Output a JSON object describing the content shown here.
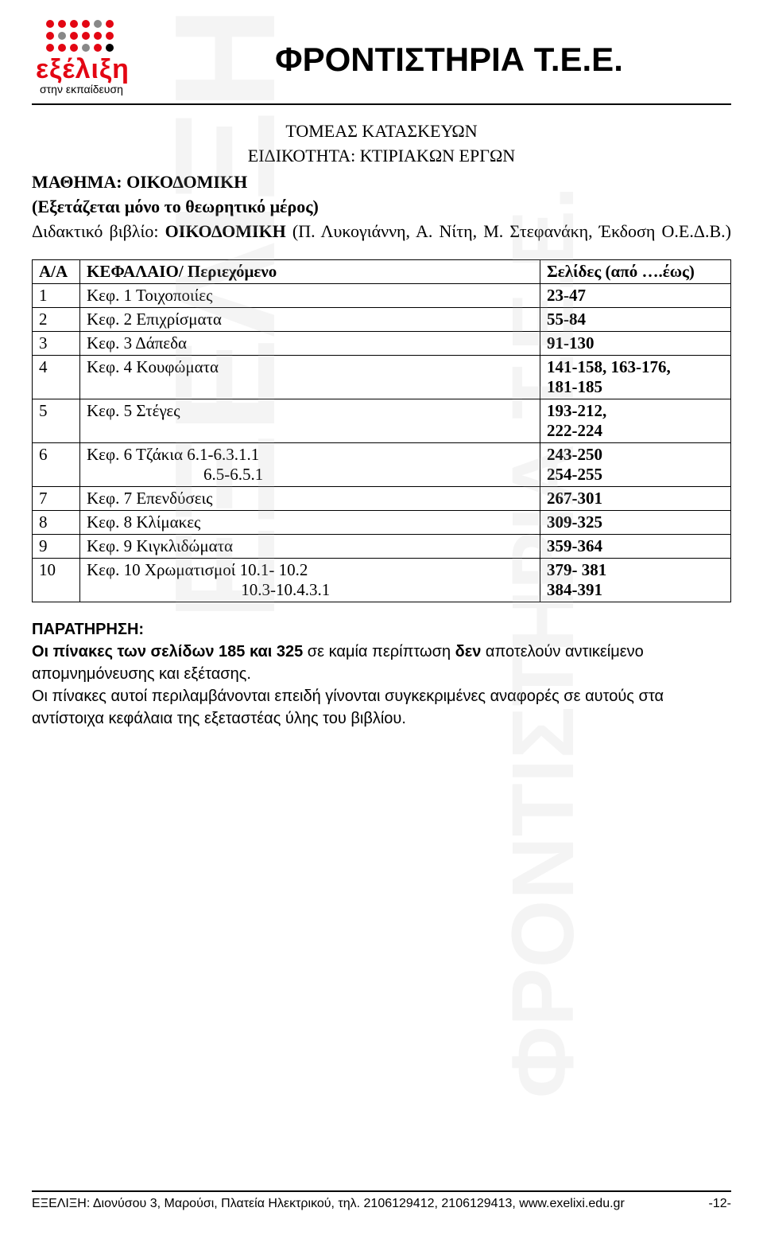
{
  "logo": {
    "main": "εξέλιξη",
    "sub": "στην εκπαίδευση"
  },
  "title": "ΦΡΟΝΤΙΣΤΗΡΙΑ Τ.Ε.Ε.",
  "subtitle1": "ΤΟΜΕΑΣ  ΚΑΤΑΣΚΕΥΩΝ",
  "subtitle2": "ΕΙΔΙΚΟΤΗΤΑ: ΚΤΙΡΙΑΚΩΝ ΕΡΓΩΝ",
  "meta": {
    "line1_bold": "ΜΑΘΗΜΑ: ΟΙΚΟΔΟΜΙΚΗ",
    "line2_bold": "(Εξετάζεται μόνο το θεωρητικό μέρος)",
    "line3_prefix": "Διδακτικό βιβλίο: ",
    "line3_bold": "ΟΙΚΟΔΟΜΙΚΗ",
    "line3_suffix": " (Π. Λυκογιάννη, Α. Νίτη, Μ. Στεφανάκη, Έκδοση Ο.Ε.Δ.Β.)"
  },
  "table": {
    "headers": {
      "aa": "Α/Α",
      "chapter": "ΚΕΦΑΛΑΙΟ/ Περιεχόμενο",
      "pages": "Σελίδες (από ….έως)"
    },
    "rows": [
      {
        "aa": "1",
        "chapter": "Κεφ. 1 Τοιχοποιίες",
        "pages": "23-47"
      },
      {
        "aa": "2",
        "chapter": "Κεφ. 2 Επιχρίσματα",
        "pages": "55-84"
      },
      {
        "aa": "3",
        "chapter": "Κεφ. 3 Δάπεδα",
        "pages": "91-130"
      },
      {
        "aa": "4",
        "chapter": "Κεφ. 4 Κουφώματα",
        "pages": "141-158, 163-176,\n181-185"
      },
      {
        "aa": "5",
        "chapter": "Κεφ. 5 Στέγες",
        "pages": "193-212,\n222-224"
      },
      {
        "aa": "6",
        "chapter": "Κεφ. 6 Τζάκια 6.1-6.3.1.1\n                            6.5-6.5.1",
        "pages": "243-250\n254-255"
      },
      {
        "aa": "7",
        "chapter": "Κεφ. 7 Επενδύσεις",
        "pages": "267-301"
      },
      {
        "aa": "8",
        "chapter": "Κεφ. 8 Κλίμακες",
        "pages": "309-325"
      },
      {
        "aa": "9",
        "chapter": "Κεφ. 9 Κιγκλιδώματα",
        "pages": "359-364"
      },
      {
        "aa": "10",
        "chapter": "Κεφ. 10 Χρωματισμοί 10.1- 10.2\n                                     10.3-10.4.3.1",
        "pages": "379- 381\n384-391"
      }
    ]
  },
  "note": {
    "heading": "ΠΑΡΑΤΗΡΗΣΗ:",
    "p1_a": "Οι πίνακες των σελίδων 185 και 325",
    "p1_b": " σε καμία περίπτωση ",
    "p1_c": "δεν",
    "p1_d": " αποτελούν αντικείμενο απομνημόνευσης και εξέτασης.",
    "p2": "Οι πίνακες αυτοί περιλαμβάνονται επειδή γίνονται συγκεκριμένες αναφορές σε αυτούς στα αντίστοιχα κεφάλαια της εξεταστέας ύλης του βιβλίου."
  },
  "watermark1": "ΕΞΕΛΙΞΗ",
  "watermark2": "ΦΡΟΝΤΙΣΤΗΡΙΑ Τ.Ε.Ε.",
  "footer": {
    "text": "ΕΞΕΛΙΞΗ: Διονύσου 3, Μαρούσι, Πλατεία Ηλεκτρικού, τηλ. 2106129412, 2106129413, www.exelixi.edu.gr",
    "page": "-12-"
  }
}
